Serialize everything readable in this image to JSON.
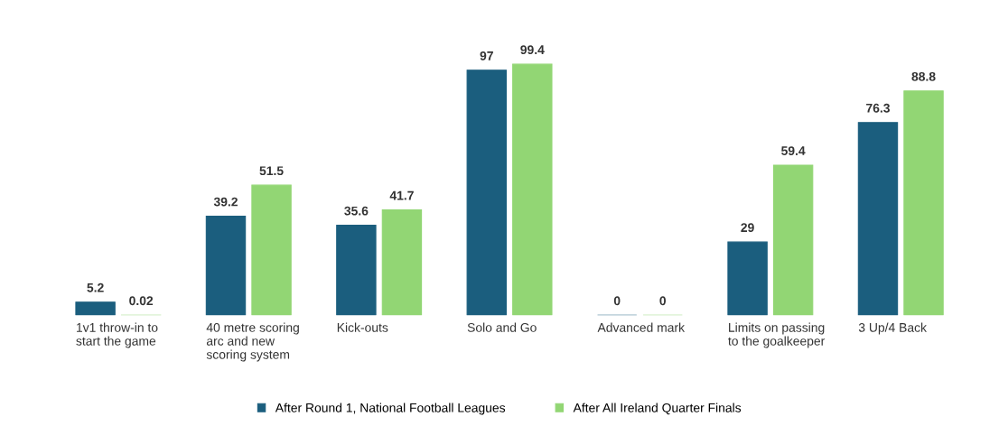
{
  "chart_data": {
    "type": "bar",
    "categories": [
      "1v1 throw-in to\nstart the game",
      "40 metre scoring\narc and new\nscoring system",
      "Kick-outs",
      "Solo and Go",
      "Advanced mark",
      "Limits on passing\nto the goalkeeper",
      "3 Up/4 Back"
    ],
    "series": [
      {
        "name": "After Round 1, National Football Leagues",
        "color": "#1b5e7e",
        "values": [
          5.2,
          39.2,
          35.6,
          97,
          0,
          29,
          76.3
        ]
      },
      {
        "name": "After All Ireland Quarter Finals",
        "color": "#92d674",
        "values": [
          0.02,
          51.5,
          41.7,
          99.4,
          0,
          59.4,
          88.8
        ]
      }
    ],
    "data_labels": true,
    "legend": "bottom",
    "grid": false
  }
}
